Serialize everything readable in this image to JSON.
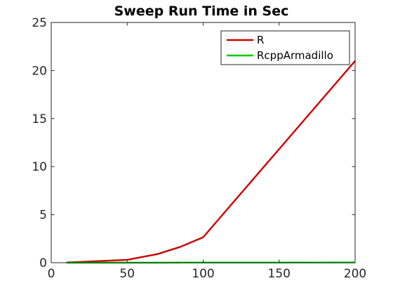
{
  "chart_data": {
    "type": "line",
    "title": "Sweep Run Time in Sec",
    "xlabel": "",
    "ylabel": "",
    "xlim": [
      0,
      200
    ],
    "ylim": [
      0,
      25
    ],
    "xticks": [
      0,
      50,
      100,
      150,
      200
    ],
    "yticks": [
      0,
      5,
      10,
      15,
      20,
      25
    ],
    "grid": false,
    "legend_position": "top-right",
    "series": [
      {
        "name": "R",
        "color": "#cc0000",
        "x": [
          10,
          25,
          50,
          70,
          85,
          100,
          200
        ],
        "y": [
          0.02,
          0.12,
          0.3,
          0.9,
          1.65,
          2.65,
          21.0
        ]
      },
      {
        "name": "RcppArmadillo",
        "color": "#00cc00",
        "x": [
          10,
          25,
          50,
          70,
          85,
          100,
          200
        ],
        "y": [
          0.0,
          0.0,
          0.0,
          0.0,
          0.01,
          0.01,
          0.02
        ]
      }
    ]
  }
}
